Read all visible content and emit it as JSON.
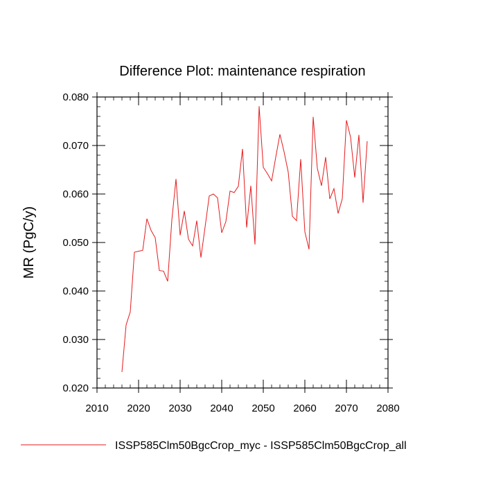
{
  "chart_data": {
    "type": "line",
    "title": "Difference Plot: maintenance respiration",
    "xlabel": "",
    "ylabel": "MR  (PgC/y)",
    "xlim": [
      2010,
      2080
    ],
    "ylim": [
      0.02,
      0.08
    ],
    "x_ticks": [
      2010,
      2020,
      2030,
      2040,
      2050,
      2060,
      2070,
      2080
    ],
    "x_tick_labels": [
      "2010",
      "2020",
      "2030",
      "2040",
      "2050",
      "2060",
      "2070",
      "2080"
    ],
    "y_ticks": [
      0.02,
      0.03,
      0.04,
      0.05,
      0.06,
      0.07,
      0.08
    ],
    "y_tick_labels": [
      "0.020",
      "0.030",
      "0.040",
      "0.050",
      "0.060",
      "0.070",
      "0.080"
    ],
    "grid": false,
    "legend_position": "bottom",
    "series": [
      {
        "name": "ISSP585Clm50BgcCrop_myc - ISSP585Clm50BgcCrop_all",
        "color": "#e41a1c",
        "x": [
          2016,
          2017,
          2018,
          2019,
          2020,
          2021,
          2022,
          2023,
          2024,
          2025,
          2026,
          2027,
          2028,
          2029,
          2030,
          2031,
          2032,
          2033,
          2034,
          2035,
          2036,
          2037,
          2038,
          2039,
          2040,
          2041,
          2042,
          2043,
          2044,
          2045,
          2046,
          2047,
          2048,
          2049,
          2050,
          2051,
          2052,
          2053,
          2054,
          2055,
          2056,
          2057,
          2058,
          2059,
          2060,
          2061,
          2062,
          2063,
          2064,
          2065,
          2066,
          2067,
          2068,
          2069,
          2070,
          2071,
          2072,
          2073,
          2074,
          2075
        ],
        "values": [
          0.0233,
          0.033,
          0.0357,
          0.048,
          0.0482,
          0.0484,
          0.0549,
          0.0525,
          0.051,
          0.0442,
          0.0441,
          0.042,
          0.0546,
          0.0631,
          0.0515,
          0.0565,
          0.0507,
          0.0493,
          0.0545,
          0.0469,
          0.0532,
          0.0596,
          0.06,
          0.0592,
          0.052,
          0.0543,
          0.0606,
          0.0603,
          0.0616,
          0.0693,
          0.0531,
          0.0617,
          0.0496,
          0.0781,
          0.0655,
          0.0642,
          0.0627,
          0.0676,
          0.0723,
          0.0687,
          0.0645,
          0.0554,
          0.0545,
          0.0672,
          0.0522,
          0.0486,
          0.0759,
          0.0653,
          0.0617,
          0.0676,
          0.059,
          0.0611,
          0.056,
          0.059,
          0.0752,
          0.0717,
          0.0634,
          0.0722,
          0.0582,
          0.0709
        ]
      }
    ]
  }
}
